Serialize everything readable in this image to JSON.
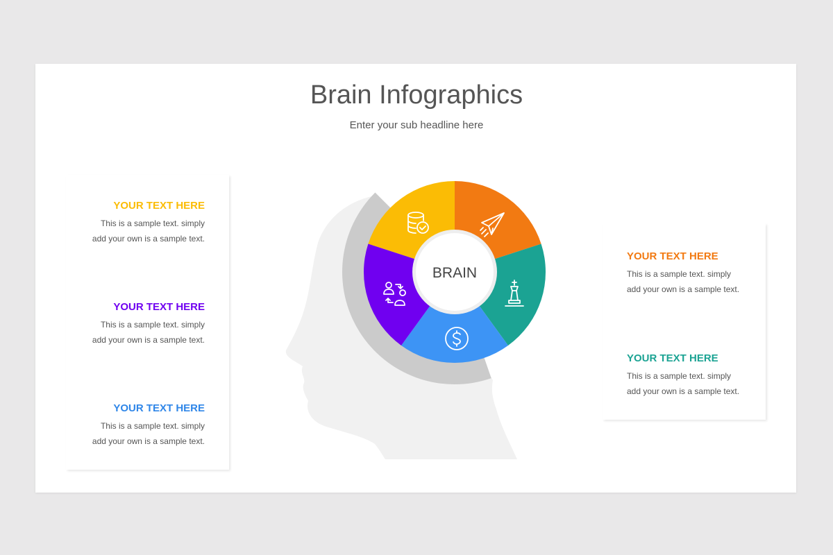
{
  "title": "Brain Infographics",
  "subtitle": "Enter your sub headline here",
  "center_label": "BRAIN",
  "colors": {
    "yellow": "#fbbc05",
    "orange": "#f27a12",
    "teal": "#1ba393",
    "blue": "#3d94f5",
    "purple": "#7000f0",
    "gray_arc": "#cbcbcb",
    "head": "#f1f1f1"
  },
  "segments": [
    {
      "color": "#fbbc05",
      "icon": "database-check-icon"
    },
    {
      "color": "#f27a12",
      "icon": "paper-plane-icon"
    },
    {
      "color": "#1ba393",
      "icon": "chess-king-icon"
    },
    {
      "color": "#3d94f5",
      "icon": "dollar-coin-icon"
    },
    {
      "color": "#7000f0",
      "icon": "user-exchange-icon"
    }
  ],
  "left_items": [
    {
      "heading": "YOUR TEXT HERE",
      "color": "#fbbc05",
      "line1": "This is a sample text. simply",
      "line2": "add your own is a sample text."
    },
    {
      "heading": "YOUR TEXT HERE",
      "color": "#7000f0",
      "line1": "This is a sample text. simply",
      "line2": "add your own is a sample text."
    },
    {
      "heading": "YOUR TEXT HERE",
      "color": "#2f86e8",
      "line1": "This is a sample text. simply",
      "line2": "add your own is a sample text."
    }
  ],
  "right_items": [
    {
      "heading": "YOUR TEXT HERE",
      "color": "#f27a12",
      "line1": "This is a sample text. simply",
      "line2": "add your own is a sample text."
    },
    {
      "heading": "YOUR TEXT HERE",
      "color": "#1ba393",
      "line1": "This is a sample text. simply",
      "line2": "add your own is a sample text."
    }
  ]
}
